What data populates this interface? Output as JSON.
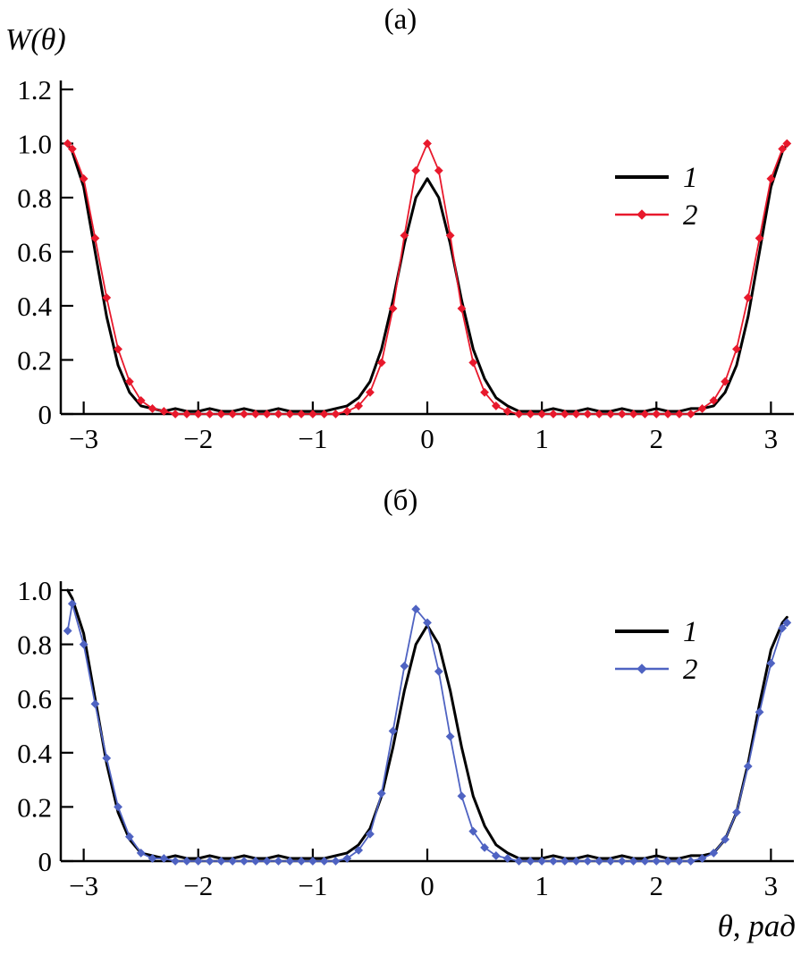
{
  "figure": {
    "background": "#ffffff",
    "y_axis_label": "W(θ)",
    "x_axis_label": "θ, рад"
  },
  "chart_data": [
    {
      "type": "line",
      "title": "(а)",
      "ylabel": "W(θ)",
      "xlabel": "",
      "xlim": [
        -3.2,
        3.2
      ],
      "ylim": [
        0,
        1.2
      ],
      "grid": false,
      "legend_position": "upper-right",
      "x_ticks": [
        {
          "v": -3,
          "label": "−3"
        },
        {
          "v": -2,
          "label": "−2"
        },
        {
          "v": -1,
          "label": "−1"
        },
        {
          "v": 0,
          "label": "0"
        },
        {
          "v": 1,
          "label": "1"
        },
        {
          "v": 2,
          "label": "2"
        },
        {
          "v": 3,
          "label": "3"
        }
      ],
      "y_ticks": [
        {
          "v": 0,
          "label": "0"
        },
        {
          "v": 0.2,
          "label": "0.2"
        },
        {
          "v": 0.4,
          "label": "0.4"
        },
        {
          "v": 0.6,
          "label": "0.6"
        },
        {
          "v": 0.8,
          "label": "0.8"
        },
        {
          "v": 1.0,
          "label": "1.0"
        },
        {
          "v": 1.2,
          "label": "1.2"
        }
      ],
      "x": [
        -3.14,
        -3.1,
        -3.0,
        -2.9,
        -2.8,
        -2.7,
        -2.6,
        -2.5,
        -2.4,
        -2.3,
        -2.2,
        -2.1,
        -2.0,
        -1.9,
        -1.8,
        -1.7,
        -1.6,
        -1.5,
        -1.4,
        -1.3,
        -1.2,
        -1.1,
        -1.0,
        -0.9,
        -0.8,
        -0.7,
        -0.6,
        -0.5,
        -0.4,
        -0.3,
        -0.2,
        -0.1,
        0,
        0.1,
        0.2,
        0.3,
        0.4,
        0.5,
        0.6,
        0.7,
        0.8,
        0.9,
        1.0,
        1.1,
        1.2,
        1.3,
        1.4,
        1.5,
        1.6,
        1.7,
        1.8,
        1.9,
        2.0,
        2.1,
        2.2,
        2.3,
        2.4,
        2.5,
        2.6,
        2.7,
        2.8,
        2.9,
        3.0,
        3.1,
        3.14
      ],
      "series": [
        {
          "name": "1",
          "color": "#000000",
          "marker": "none",
          "line_width": 3,
          "values": [
            1.0,
            0.97,
            0.84,
            0.6,
            0.36,
            0.18,
            0.08,
            0.03,
            0.02,
            0.01,
            0.02,
            0.01,
            0.01,
            0.02,
            0.01,
            0.01,
            0.02,
            0.01,
            0.01,
            0.02,
            0.01,
            0.01,
            0.01,
            0.01,
            0.02,
            0.03,
            0.06,
            0.12,
            0.24,
            0.42,
            0.63,
            0.8,
            0.87,
            0.8,
            0.63,
            0.42,
            0.24,
            0.13,
            0.06,
            0.03,
            0.01,
            0.01,
            0.01,
            0.02,
            0.01,
            0.01,
            0.02,
            0.01,
            0.01,
            0.02,
            0.01,
            0.01,
            0.02,
            0.01,
            0.01,
            0.02,
            0.02,
            0.03,
            0.08,
            0.18,
            0.36,
            0.6,
            0.84,
            0.97,
            1.0
          ]
        },
        {
          "name": "2",
          "color": "#e8192c",
          "marker": "diamond",
          "line_width": 1.8,
          "values": [
            1.0,
            0.98,
            0.87,
            0.65,
            0.43,
            0.24,
            0.12,
            0.05,
            0.02,
            0.01,
            0.0,
            0.0,
            0.0,
            0.0,
            0.0,
            0.0,
            0.0,
            0.0,
            0.0,
            0.0,
            0.0,
            0.0,
            0.0,
            0.0,
            0.0,
            0.01,
            0.03,
            0.08,
            0.19,
            0.39,
            0.66,
            0.9,
            1.0,
            0.9,
            0.66,
            0.39,
            0.19,
            0.08,
            0.03,
            0.01,
            0.0,
            0.0,
            0.0,
            0.0,
            0.0,
            0.0,
            0.0,
            0.0,
            0.0,
            0.0,
            0.0,
            0.0,
            0.0,
            0.0,
            0.0,
            0.0,
            0.02,
            0.05,
            0.12,
            0.24,
            0.43,
            0.65,
            0.87,
            0.98,
            1.0
          ]
        }
      ]
    },
    {
      "type": "line",
      "title": "(б)",
      "ylabel": "",
      "xlabel": "θ, рад",
      "xlim": [
        -3.2,
        3.2
      ],
      "ylim": [
        0,
        1.0
      ],
      "grid": false,
      "legend_position": "upper-right",
      "x_ticks": [
        {
          "v": -3,
          "label": "−3"
        },
        {
          "v": -2,
          "label": "−2"
        },
        {
          "v": -1,
          "label": "−1"
        },
        {
          "v": 0,
          "label": "0"
        },
        {
          "v": 1,
          "label": "1"
        },
        {
          "v": 2,
          "label": "2"
        },
        {
          "v": 3,
          "label": "3"
        }
      ],
      "y_ticks": [
        {
          "v": 0,
          "label": "0"
        },
        {
          "v": 0.2,
          "label": "0.2"
        },
        {
          "v": 0.4,
          "label": "0.4"
        },
        {
          "v": 0.6,
          "label": "0.6"
        },
        {
          "v": 0.8,
          "label": "0.8"
        },
        {
          "v": 1.0,
          "label": "1.0"
        }
      ],
      "x": [
        -3.14,
        -3.1,
        -3.0,
        -2.9,
        -2.8,
        -2.7,
        -2.6,
        -2.5,
        -2.4,
        -2.3,
        -2.2,
        -2.1,
        -2.0,
        -1.9,
        -1.8,
        -1.7,
        -1.6,
        -1.5,
        -1.4,
        -1.3,
        -1.2,
        -1.1,
        -1.0,
        -0.9,
        -0.8,
        -0.7,
        -0.6,
        -0.5,
        -0.4,
        -0.3,
        -0.2,
        -0.1,
        0,
        0.1,
        0.2,
        0.3,
        0.4,
        0.5,
        0.6,
        0.7,
        0.8,
        0.9,
        1.0,
        1.1,
        1.2,
        1.3,
        1.4,
        1.5,
        1.6,
        1.7,
        1.8,
        1.9,
        2.0,
        2.1,
        2.2,
        2.3,
        2.4,
        2.5,
        2.6,
        2.7,
        2.8,
        2.9,
        3.0,
        3.1,
        3.14
      ],
      "series": [
        {
          "name": "1",
          "color": "#000000",
          "marker": "none",
          "line_width": 3,
          "values": [
            1.0,
            0.97,
            0.84,
            0.6,
            0.36,
            0.18,
            0.08,
            0.03,
            0.02,
            0.01,
            0.02,
            0.01,
            0.01,
            0.02,
            0.01,
            0.01,
            0.02,
            0.01,
            0.01,
            0.02,
            0.01,
            0.01,
            0.01,
            0.01,
            0.02,
            0.03,
            0.06,
            0.12,
            0.24,
            0.42,
            0.63,
            0.8,
            0.87,
            0.8,
            0.63,
            0.42,
            0.24,
            0.13,
            0.06,
            0.03,
            0.01,
            0.01,
            0.01,
            0.02,
            0.01,
            0.01,
            0.02,
            0.01,
            0.01,
            0.02,
            0.01,
            0.01,
            0.02,
            0.01,
            0.01,
            0.02,
            0.02,
            0.03,
            0.08,
            0.18,
            0.36,
            0.58,
            0.78,
            0.88,
            0.9
          ]
        },
        {
          "name": "2",
          "color": "#4f63c2",
          "marker": "diamond",
          "line_width": 1.8,
          "values": [
            0.85,
            0.95,
            0.8,
            0.58,
            0.38,
            0.2,
            0.09,
            0.03,
            0.01,
            0.01,
            0.0,
            0.0,
            0.0,
            0.0,
            0.0,
            0.0,
            0.0,
            0.0,
            0.0,
            0.0,
            0.0,
            0.0,
            0.0,
            0.0,
            0.0,
            0.01,
            0.04,
            0.1,
            0.25,
            0.48,
            0.72,
            0.93,
            0.88,
            0.7,
            0.46,
            0.24,
            0.11,
            0.05,
            0.02,
            0.01,
            0.0,
            0.0,
            0.0,
            0.0,
            0.0,
            0.0,
            0.0,
            0.0,
            0.0,
            0.0,
            0.0,
            0.0,
            0.0,
            0.0,
            0.0,
            0.0,
            0.01,
            0.03,
            0.08,
            0.18,
            0.35,
            0.55,
            0.73,
            0.86,
            0.88
          ]
        }
      ]
    }
  ]
}
